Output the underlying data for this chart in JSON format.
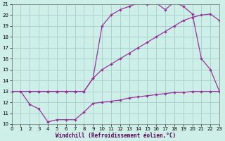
{
  "xlabel": "Windchill (Refroidissement éolien,°C)",
  "bg_color": "#ceeee8",
  "grid_color": "#aad4ce",
  "line_color": "#993399",
  "xlim": [
    0,
    23
  ],
  "ylim": [
    10,
    21
  ],
  "xticks": [
    0,
    1,
    2,
    3,
    4,
    5,
    6,
    7,
    8,
    9,
    10,
    11,
    12,
    13,
    14,
    15,
    16,
    17,
    18,
    19,
    20,
    21,
    22,
    23
  ],
  "yticks": [
    10,
    11,
    12,
    13,
    14,
    15,
    16,
    17,
    18,
    19,
    20,
    21
  ],
  "line1_x": [
    0,
    1,
    2,
    3,
    4,
    5,
    6,
    7,
    8,
    9,
    10,
    11,
    12,
    13,
    14,
    15,
    16,
    17,
    18,
    19,
    20,
    21,
    22,
    23
  ],
  "line1_y": [
    13,
    13,
    11.8,
    11.4,
    10.2,
    10.4,
    10.4,
    10.4,
    11.1,
    11.9,
    12.0,
    12.1,
    12.2,
    12.4,
    12.5,
    12.6,
    12.7,
    12.8,
    12.9,
    12.9,
    13.0,
    13.0,
    13.0,
    13.0
  ],
  "line2_x": [
    0,
    2,
    3,
    4,
    5,
    6,
    7,
    8,
    9,
    10,
    11,
    12,
    13,
    14,
    15,
    16,
    17,
    18,
    19,
    20,
    21,
    22,
    23
  ],
  "line2_y": [
    13,
    13,
    13,
    13,
    13,
    13,
    13,
    13,
    14.2,
    15.0,
    15.5,
    16.0,
    16.5,
    17.0,
    17.5,
    18.0,
    18.5,
    19.0,
    19.5,
    19.8,
    20.0,
    20.1,
    19.5
  ],
  "line3_x": [
    2,
    3,
    4,
    5,
    6,
    7,
    8,
    9,
    10,
    11,
    12,
    13,
    14,
    15,
    16,
    17,
    18,
    19,
    20,
    21,
    22,
    23
  ],
  "line3_y": [
    13,
    13,
    13,
    13,
    13,
    13,
    13,
    14.2,
    19.0,
    20.0,
    20.5,
    20.8,
    21.1,
    21.0,
    21.1,
    20.5,
    21.2,
    20.8,
    20.1,
    16.0,
    15.0,
    13.0
  ]
}
